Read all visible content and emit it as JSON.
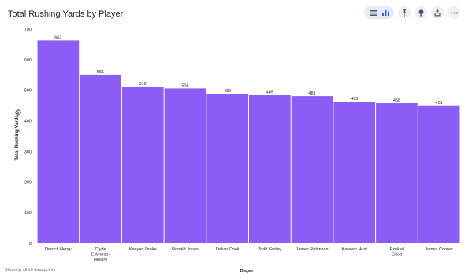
{
  "header": {
    "title": "Total Rushing Yards by Player"
  },
  "toolbar": {
    "buttons": [
      {
        "name": "table-view-icon"
      },
      {
        "name": "bar-chart-icon"
      },
      {
        "name": "pin-icon"
      },
      {
        "name": "lightbulb-icon"
      },
      {
        "name": "share-icon"
      },
      {
        "name": "more-options-icon"
      }
    ]
  },
  "footer": {
    "status": "Showing all 10 data points"
  },
  "colors": {
    "bar": "#8b5cf6",
    "axis": "#1d232f",
    "grid": "#e5e7eb"
  },
  "chart_data": {
    "type": "bar",
    "title": "Total Rushing Yards by Player",
    "xlabel": "Player",
    "ylabel": "Total Rushing Yards",
    "ylim": [
      0,
      700
    ],
    "yticks": [
      0,
      100,
      200,
      300,
      400,
      500,
      600,
      700
    ],
    "grid": false,
    "categories": [
      "Derrick Henry",
      "Clyde Edwards-Helaire",
      "Kenyan Drake",
      "Ronald Jones",
      "Dalvin Cook",
      "Todd Gurley",
      "James Robinson",
      "Kareem Hunt",
      "Ezekiel Elliott",
      "James Conner"
    ],
    "values": [
      663,
      551,
      512,
      506,
      489,
      485,
      481,
      463,
      458,
      451
    ]
  }
}
